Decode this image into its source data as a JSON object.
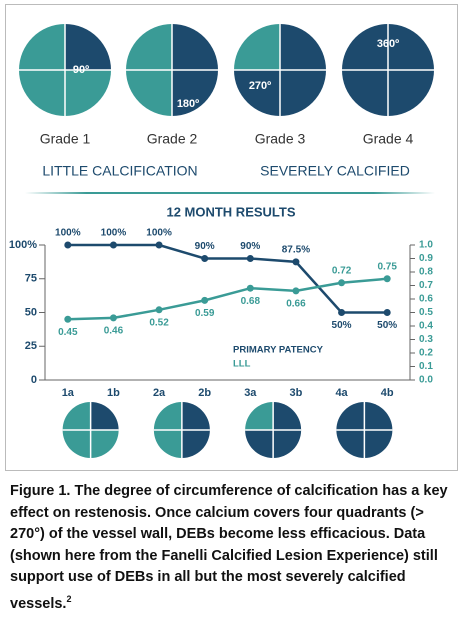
{
  "grades": [
    {
      "label": "Grade 1",
      "degrees": "90º"
    },
    {
      "label": "Grade 2",
      "degrees": "180º"
    },
    {
      "label": "Grade 3",
      "degrees": "270º"
    },
    {
      "label": "Grade 4",
      "degrees": "360º"
    }
  ],
  "scale_left": "LITTLE CALCIFICATION",
  "scale_right": "SEVERELY CALCIFIED",
  "chart_data": {
    "type": "line",
    "title": "12 MONTH RESULTS",
    "categories": [
      "1a",
      "1b",
      "2a",
      "2b",
      "3a",
      "3b",
      "4a",
      "4b"
    ],
    "series": [
      {
        "name": "PRIMARY PATENCY",
        "color": "#1d4a6d",
        "values": [
          100,
          100,
          100,
          90,
          90,
          87.5,
          50,
          50
        ],
        "value_labels": [
          "100%",
          "100%",
          "100%",
          "90%",
          "90%",
          "87.5%",
          "50%",
          "50%"
        ]
      },
      {
        "name": "LLL",
        "color": "#3a9b96",
        "axis": "y2",
        "values": [
          0.45,
          0.46,
          0.52,
          0.59,
          0.68,
          0.66,
          0.72,
          0.75
        ]
      }
    ],
    "ylim": [
      0,
      100
    ],
    "yticks": [
      0,
      25,
      50,
      75,
      {
        "value": 100,
        "label": "100%"
      }
    ],
    "y2lim": [
      0,
      1
    ],
    "y2ticks": [
      {
        "value": 0,
        "label": "0.0"
      },
      0.1,
      0.2,
      0.3,
      0.4,
      0.5,
      0.6,
      0.7,
      0.8,
      0.9,
      {
        "value": 1,
        "label": "1.0"
      }
    ],
    "colors": {
      "calcified": "#1d4a6d",
      "healthy": "#3a9b96"
    }
  },
  "caption": "Figure 1.  The degree of circumference of calcification has a key effect on restenosis. Once calcium covers four quadrants (> 270°) of the vessel wall, DEBs become less efficacious. Data (shown here from the Fanelli Calcified Lesion Experience) still support use of DEBs in all but the most severely calcified vessels.",
  "caption_ref": "2"
}
